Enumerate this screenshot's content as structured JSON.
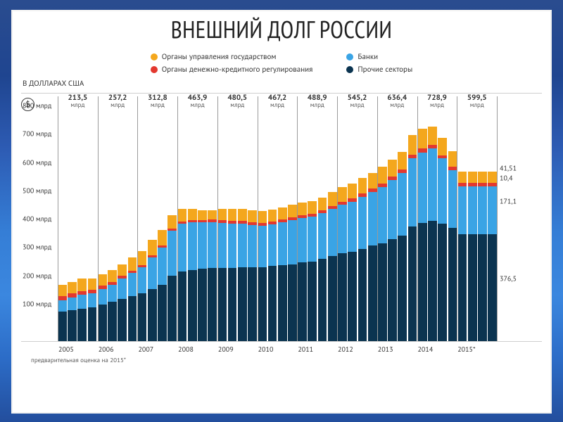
{
  "title": "ВНЕШНИЙ ДОЛГ РОССИИ",
  "title_fontsize": 34,
  "subtitle": "В ДОЛЛАРАХ США",
  "currency_icon": "$",
  "footnote": "предварительная оценка на 2015*",
  "background_color": "#ffffff",
  "chart": {
    "type": "stacked-bar",
    "amount_unit": "млрд",
    "y": {
      "min": 0,
      "max": 800,
      "step": 100,
      "ticklabels": [
        "100 млрд",
        "200 млрд",
        "300 млрд",
        "400 млрд",
        "500 млрд",
        "600 млрд",
        "700 млрд",
        "800 млрд"
      ],
      "label_fontsize": 10,
      "label_color": "#343434"
    },
    "grid_color": "#9a9a9a",
    "series": [
      {
        "key": "other",
        "label": "Прочие секторы",
        "color": "#0b3450"
      },
      {
        "key": "banks",
        "label": "Банки",
        "color": "#3aa4e5"
      },
      {
        "key": "monetary",
        "label": "Органы денежно-кредитного регулирования",
        "color": "#e3382f"
      },
      {
        "key": "gov",
        "label": "Органы управления государством",
        "color": "#f4a71d"
      }
    ],
    "years": [
      "2005",
      "2006",
      "2007",
      "2008",
      "2009",
      "2010",
      "2011",
      "2012",
      "2013",
      "2014",
      "2015*"
    ],
    "totals": [
      {
        "amt": "213,5",
        "unit": "млрд"
      },
      {
        "amt": "257,2",
        "unit": "млрд"
      },
      {
        "amt": "312,8",
        "unit": "млрд"
      },
      {
        "amt": "463,9",
        "unit": "млрд"
      },
      {
        "amt": "480,5",
        "unit": "млрд"
      },
      {
        "amt": "467,2",
        "unit": "млрд"
      },
      {
        "amt": "488,9",
        "unit": "млрд"
      },
      {
        "amt": "545,2",
        "unit": "млрд"
      },
      {
        "amt": "636,4",
        "unit": "млрд"
      },
      {
        "amt": "728,9",
        "unit": "млрд"
      },
      {
        "amt": "599,5",
        "unit": "млрд"
      }
    ],
    "right_labels": {
      "gov": {
        "text": "41,51",
        "color": "#333"
      },
      "monetary": {
        "text": "10,4",
        "color": "#333"
      },
      "banks": {
        "text": "171,1",
        "color": "#333"
      },
      "other": {
        "text": "376,5",
        "color": "#333"
      }
    },
    "quarters_per_year": 4,
    "quarterly_data": {
      "comment": "Each entry is {yearIndex 0..10, q 0..3 -> [other,banks,monetary,gov] in млрд}. Values read from the chart (approx).",
      "rows": [
        [
          105,
          40,
          15,
          40
        ],
        [
          110,
          45,
          13,
          42
        ],
        [
          115,
          48,
          13,
          44
        ],
        [
          120,
          50,
          12,
          40
        ],
        [
          130,
          55,
          12,
          40
        ],
        [
          140,
          60,
          10,
          40
        ],
        [
          150,
          70,
          10,
          40
        ],
        [
          160,
          80,
          9,
          48
        ],
        [
          170,
          90,
          9,
          50
        ],
        [
          185,
          110,
          8,
          55
        ],
        [
          200,
          130,
          8,
          55
        ],
        [
          230,
          160,
          8,
          48
        ],
        [
          245,
          170,
          8,
          45
        ],
        [
          250,
          170,
          8,
          40
        ],
        [
          255,
          165,
          8,
          35
        ],
        [
          258,
          163,
          8,
          32
        ],
        [
          258,
          160,
          10,
          38
        ],
        [
          258,
          158,
          10,
          40
        ],
        [
          260,
          155,
          10,
          42
        ],
        [
          260,
          150,
          10,
          42
        ],
        [
          262,
          145,
          10,
          42
        ],
        [
          265,
          148,
          9,
          42
        ],
        [
          268,
          152,
          9,
          43
        ],
        [
          272,
          156,
          9,
          45
        ],
        [
          278,
          158,
          10,
          43
        ],
        [
          280,
          160,
          10,
          44
        ],
        [
          290,
          162,
          10,
          45
        ],
        [
          300,
          168,
          10,
          48
        ],
        [
          310,
          172,
          11,
          50
        ],
        [
          315,
          178,
          11,
          52
        ],
        [
          325,
          185,
          11,
          55
        ],
        [
          337,
          190,
          12,
          56
        ],
        [
          345,
          200,
          12,
          58
        ],
        [
          360,
          210,
          12,
          60
        ],
        [
          373,
          220,
          13,
          62
        ],
        [
          404,
          242,
          13,
          68
        ],
        [
          417,
          250,
          13,
          70
        ],
        [
          425,
          255,
          13,
          66
        ],
        [
          415,
          230,
          12,
          62
        ],
        [
          400,
          203,
          12,
          56
        ],
        [
          376.5,
          171.1,
          10.4,
          41.51
        ],
        [
          376.5,
          171.1,
          10.4,
          41.51
        ],
        [
          376.5,
          171.1,
          10.4,
          41.51
        ],
        [
          376.5,
          171.1,
          10.4,
          41.51
        ]
      ]
    }
  }
}
